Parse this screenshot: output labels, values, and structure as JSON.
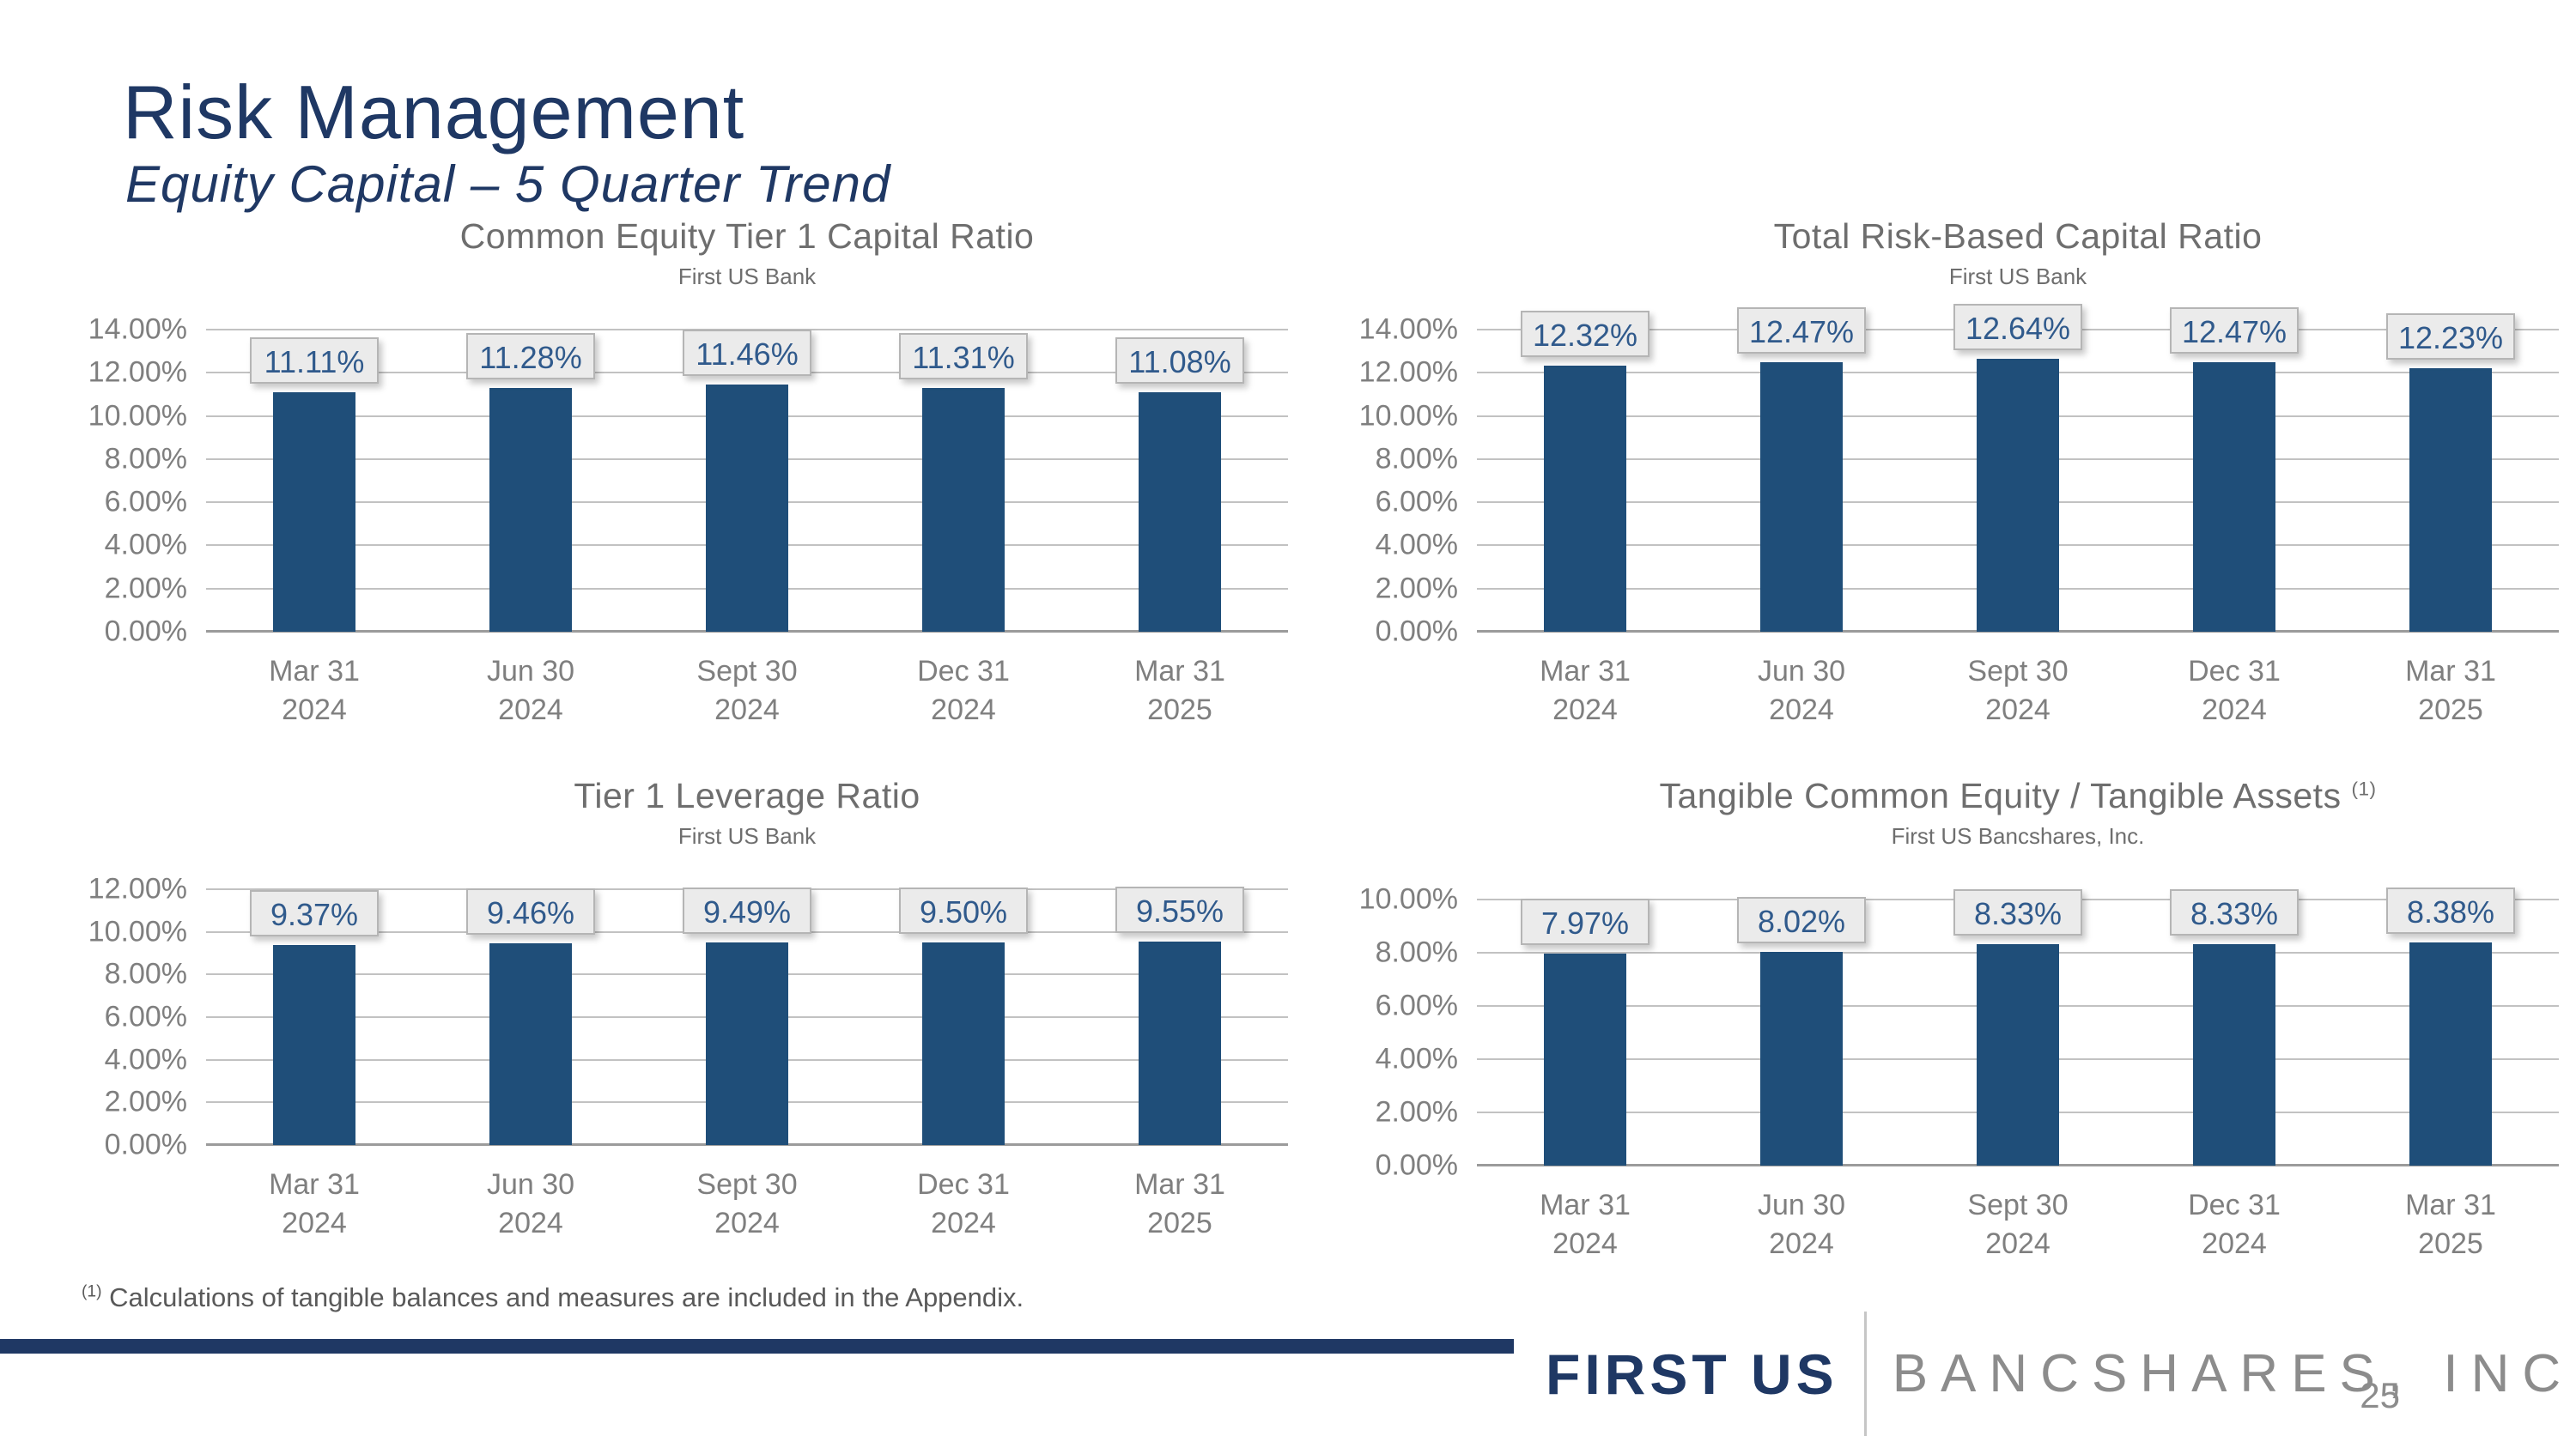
{
  "slide": {
    "title": "Risk Management",
    "subtitle": "Equity Capital – 5 Quarter Trend",
    "page_number": "25"
  },
  "footnote": {
    "marker": "(1)",
    "text": "Calculations of tangible balances and measures are included in the Appendix."
  },
  "footer": {
    "brand_primary": "FIRST US",
    "brand_secondary": "BANCSHARES, INC."
  },
  "colors": {
    "background": "#FFFFFF",
    "accent_navy": "#1F3864",
    "bar_fill": "#1F4E79",
    "data_label_text": "#305A8C",
    "data_label_box_bg": "#EBEBEB",
    "data_label_box_border": "#B5B5B5",
    "gridline": "#C2C2C2",
    "axis_text": "#7F7F7F",
    "chart_title_text": "#6E6E6E",
    "footnote_text": "#595959",
    "brand_secondary_text": "#8C8C8C"
  },
  "chart_data": [
    {
      "type": "bar",
      "title": "Common Equity Tier 1 Capital Ratio",
      "subtitle": "First US Bank",
      "categories": [
        [
          "Mar 31",
          "2024"
        ],
        [
          "Jun 30",
          "2024"
        ],
        [
          "Sept 30",
          "2024"
        ],
        [
          "Dec 31",
          "2024"
        ],
        [
          "Mar 31",
          "2025"
        ]
      ],
      "values": [
        11.11,
        11.28,
        11.46,
        11.31,
        11.08
      ],
      "labels": [
        "11.11%",
        "11.28%",
        "11.46%",
        "11.31%",
        "11.08%"
      ],
      "ylim": [
        0,
        14
      ],
      "yticks": [
        "14.00%",
        "12.00%",
        "10.00%",
        "8.00%",
        "6.00%",
        "4.00%",
        "2.00%",
        "0.00%"
      ],
      "grid": true,
      "legend": "none"
    },
    {
      "type": "bar",
      "title": "Total Risk-Based Capital Ratio",
      "subtitle": "First US Bank",
      "categories": [
        [
          "Mar 31",
          "2024"
        ],
        [
          "Jun 30",
          "2024"
        ],
        [
          "Sept 30",
          "2024"
        ],
        [
          "Dec 31",
          "2024"
        ],
        [
          "Mar 31",
          "2025"
        ]
      ],
      "values": [
        12.32,
        12.47,
        12.64,
        12.47,
        12.23
      ],
      "labels": [
        "12.32%",
        "12.47%",
        "12.64%",
        "12.47%",
        "12.23%"
      ],
      "ylim": [
        0,
        14
      ],
      "yticks": [
        "14.00%",
        "12.00%",
        "10.00%",
        "8.00%",
        "6.00%",
        "4.00%",
        "2.00%",
        "0.00%"
      ],
      "grid": true,
      "legend": "none"
    },
    {
      "type": "bar",
      "title": "Tier 1 Leverage Ratio",
      "subtitle": "First US Bank",
      "categories": [
        [
          "Mar 31",
          "2024"
        ],
        [
          "Jun 30",
          "2024"
        ],
        [
          "Sept 30",
          "2024"
        ],
        [
          "Dec 31",
          "2024"
        ],
        [
          "Mar 31",
          "2025"
        ]
      ],
      "values": [
        9.37,
        9.46,
        9.49,
        9.5,
        9.55
      ],
      "labels": [
        "9.37%",
        "9.46%",
        "9.49%",
        "9.50%",
        "9.55%"
      ],
      "ylim": [
        0,
        12
      ],
      "yticks": [
        "12.00%",
        "10.00%",
        "8.00%",
        "6.00%",
        "4.00%",
        "2.00%",
        "0.00%"
      ],
      "grid": true,
      "legend": "none"
    },
    {
      "type": "bar",
      "title": "Tangible Common Equity / Tangible Assets",
      "title_superscript": "(1)",
      "subtitle": "First US Bancshares, Inc.",
      "categories": [
        [
          "Mar 31",
          "2024"
        ],
        [
          "Jun 30",
          "2024"
        ],
        [
          "Sept 30",
          "2024"
        ],
        [
          "Dec 31",
          "2024"
        ],
        [
          "Mar 31",
          "2025"
        ]
      ],
      "values": [
        7.97,
        8.02,
        8.33,
        8.33,
        8.38
      ],
      "labels": [
        "7.97%",
        "8.02%",
        "8.33%",
        "8.33%",
        "8.38%"
      ],
      "ylim": [
        0,
        10
      ],
      "yticks": [
        "10.00%",
        "8.00%",
        "6.00%",
        "4.00%",
        "2.00%",
        "0.00%"
      ],
      "grid": true,
      "legend": "none"
    }
  ]
}
